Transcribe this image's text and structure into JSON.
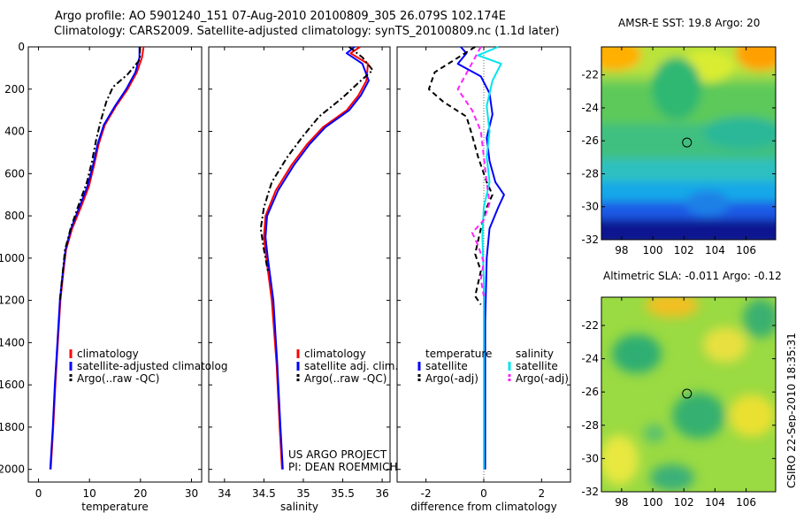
{
  "titles": {
    "line1": "Argo profile: AO 5901240_151 07-Aug-2010 20100809_305 26.079S 102.174E",
    "line2": "Climatology: CARS2009. Satellite-adjusted climatology: synTS_20100809.nc (1.1d later)",
    "map1": "AMSR-E SST: 19.8 Argo: 20",
    "map2": "Altimetric SLA: -0.011 Argo: -0.12",
    "side": "CSIRO 22-Sep-2010 18:35:31"
  },
  "colors": {
    "climatology": "#ff0000",
    "satellite": "#0000ff",
    "argo": "#000000",
    "sal_satellite": "#00e5ee",
    "sal_argo": "#ff22ff"
  },
  "chart_data": [
    {
      "type": "line",
      "xlabel": "temperature",
      "ylabel": "",
      "xlim": [
        -2,
        32
      ],
      "ylim": [
        2060,
        0
      ],
      "xticks": [
        0,
        10,
        20,
        30
      ],
      "yticks": [
        0,
        200,
        400,
        600,
        800,
        1000,
        1200,
        1400,
        1600,
        1800,
        2000
      ],
      "legend": [
        "climatology",
        "satellite-adjusted climatolog",
        "Argo(..raw -QC)"
      ],
      "series": [
        {
          "name": "climatology",
          "color": "#ff0000",
          "dash": "",
          "x": [
            20.6,
            20.3,
            19.3,
            17.5,
            15.2,
            13.0,
            11.8,
            10.9,
            9.9,
            8.3,
            6.6,
            5.4,
            4.9,
            4.3,
            3.8,
            3.3,
            2.9,
            2.4
          ],
          "y": [
            0,
            50,
            120,
            200,
            280,
            370,
            460,
            560,
            660,
            760,
            860,
            960,
            1060,
            1200,
            1400,
            1600,
            1800,
            2000
          ]
        },
        {
          "name": "satellite-adjusted climatolog",
          "color": "#0000ff",
          "dash": "",
          "x": [
            19.8,
            19.8,
            19.0,
            17.2,
            15.0,
            12.8,
            11.6,
            10.7,
            9.6,
            8.0,
            6.4,
            5.3,
            4.8,
            4.2,
            3.7,
            3.2,
            2.8,
            2.3
          ],
          "y": [
            0,
            50,
            120,
            200,
            280,
            370,
            460,
            560,
            660,
            760,
            860,
            960,
            1060,
            1200,
            1400,
            1600,
            1800,
            2000
          ]
        },
        {
          "name": "Argo(..raw -QC)",
          "color": "#000000",
          "dash": "7,3,2,3",
          "x": [
            19.9,
            19.9,
            17.5,
            14.6,
            13.3,
            12.2,
            11.3,
            10.5,
            9.5,
            7.7,
            6.3,
            5.2,
            4.7,
            4.2
          ],
          "y": [
            0,
            60,
            130,
            190,
            260,
            350,
            440,
            540,
            640,
            760,
            860,
            960,
            1080,
            1200
          ]
        }
      ]
    },
    {
      "type": "line",
      "xlabel": "salinity",
      "xlim": [
        33.8,
        36.1
      ],
      "ylim": [
        2060,
        0
      ],
      "xticks": [
        34,
        34.5,
        35,
        35.5,
        36
      ],
      "legend": [
        "climatology",
        "satellite adj. clim.",
        "Argo(..raw -QC)"
      ],
      "annotations": [
        "US ARGO PROJECT",
        "PI: DEAN ROEMMICH"
      ],
      "series": [
        {
          "name": "climatology",
          "color": "#ff0000",
          "dash": "",
          "x": [
            35.72,
            35.6,
            35.82,
            35.8,
            35.7,
            35.55,
            35.25,
            35.05,
            34.85,
            34.65,
            34.52,
            34.5,
            34.53,
            34.6,
            34.66,
            34.7,
            34.73
          ],
          "y": [
            0,
            30,
            80,
            160,
            230,
            300,
            380,
            460,
            560,
            680,
            800,
            900,
            1000,
            1200,
            1500,
            1800,
            2000
          ]
        },
        {
          "name": "satellite adj. clim.",
          "color": "#0000ff",
          "dash": "",
          "x": [
            35.65,
            35.55,
            35.75,
            35.83,
            35.73,
            35.58,
            35.28,
            35.08,
            34.88,
            34.68,
            34.54,
            34.52,
            34.55,
            34.62,
            34.67,
            34.71,
            34.74
          ],
          "y": [
            0,
            30,
            80,
            160,
            230,
            300,
            380,
            460,
            560,
            680,
            800,
            900,
            1000,
            1200,
            1500,
            1800,
            2000
          ]
        },
        {
          "name": "Argo(..raw -QC)",
          "color": "#000000",
          "dash": "7,3,2,3",
          "x": [
            35.58,
            35.75,
            35.88,
            35.7,
            35.5,
            35.2,
            35.0,
            34.8,
            34.6,
            34.5,
            34.46,
            34.5,
            34.55
          ],
          "y": [
            0,
            50,
            110,
            170,
            240,
            330,
            420,
            520,
            640,
            760,
            860,
            960,
            1060
          ]
        }
      ]
    },
    {
      "type": "line",
      "xlabel": "difference from climatology",
      "xlim": [
        -3.0,
        3.0
      ],
      "ylim": [
        2060,
        0
      ],
      "xticks": [
        -2,
        0,
        2
      ],
      "legend_groups": [
        {
          "title": "temperature",
          "items": [
            "satellite",
            "Argo(-adj)"
          ]
        },
        {
          "title": "salinity",
          "items": [
            "satellite",
            "Argo(-adj)"
          ]
        }
      ],
      "series": [
        {
          "name": "temperature satellite",
          "color": "#0000ff",
          "dash": "",
          "x": [
            -0.8,
            -0.6,
            -0.9,
            -0.1,
            0.2,
            0.3,
            0.1,
            0.2,
            0.4,
            0.7,
            0.5,
            0.2,
            0.1,
            0.05,
            0.05
          ],
          "y": [
            0,
            30,
            80,
            140,
            220,
            320,
            430,
            540,
            640,
            700,
            760,
            860,
            1000,
            1300,
            2000
          ]
        },
        {
          "name": "temperature Argo(-adj)",
          "color": "#000000",
          "dash": "6,4",
          "x": [
            -0.3,
            -1.7,
            -1.9,
            -1.4,
            -0.6,
            -0.4,
            -0.2,
            0.1,
            0.3,
            0.1,
            -0.1,
            -0.3,
            -0.1,
            -0.2,
            -0.3,
            -0.1
          ],
          "y": [
            0,
            120,
            200,
            260,
            330,
            420,
            520,
            640,
            700,
            760,
            860,
            980,
            1060,
            1120,
            1180,
            1220
          ]
        },
        {
          "name": "salinity satellite",
          "color": "#00e5ee",
          "dash": "",
          "x": [
            0.5,
            -0.2,
            0.6,
            0.3,
            0.1,
            0.2,
            0.1,
            0.2,
            0.0,
            -0.05,
            0.0,
            0.0,
            0.0
          ],
          "y": [
            0,
            40,
            80,
            160,
            280,
            400,
            520,
            640,
            760,
            900,
            1100,
            1500,
            2000
          ]
        },
        {
          "name": "salinity Argo(-adj)",
          "color": "#ff22ff",
          "dash": "6,4",
          "x": [
            -0.1,
            -0.9,
            -0.4,
            -0.1,
            0.0,
            0.1,
            0.2,
            0.0,
            -0.4,
            -0.2,
            0.0,
            -0.1,
            0.0
          ],
          "y": [
            0,
            200,
            300,
            400,
            520,
            640,
            740,
            820,
            880,
            940,
            1020,
            1100,
            1180
          ]
        }
      ]
    },
    {
      "type": "heatmap",
      "title": "AMSR-E SST: 19.8 Argo: 20",
      "xlim": [
        96.7,
        107.9
      ],
      "ylim": [
        -32,
        -20.3
      ],
      "xticks": [
        98,
        100,
        102,
        104,
        106
      ],
      "yticks": [
        -22,
        -24,
        -26,
        -28,
        -30,
        -32
      ],
      "marker": {
        "lon": 102.2,
        "lat": -26.1
      }
    },
    {
      "type": "heatmap",
      "title": "Altimetric SLA: -0.011 Argo: -0.12",
      "xlim": [
        96.7,
        107.9
      ],
      "ylim": [
        -32,
        -20.3
      ],
      "xticks": [
        98,
        100,
        102,
        104,
        106
      ],
      "yticks": [
        -22,
        -24,
        -26,
        -28,
        -30,
        -32
      ],
      "marker": {
        "lon": 102.2,
        "lat": -26.1
      }
    }
  ]
}
